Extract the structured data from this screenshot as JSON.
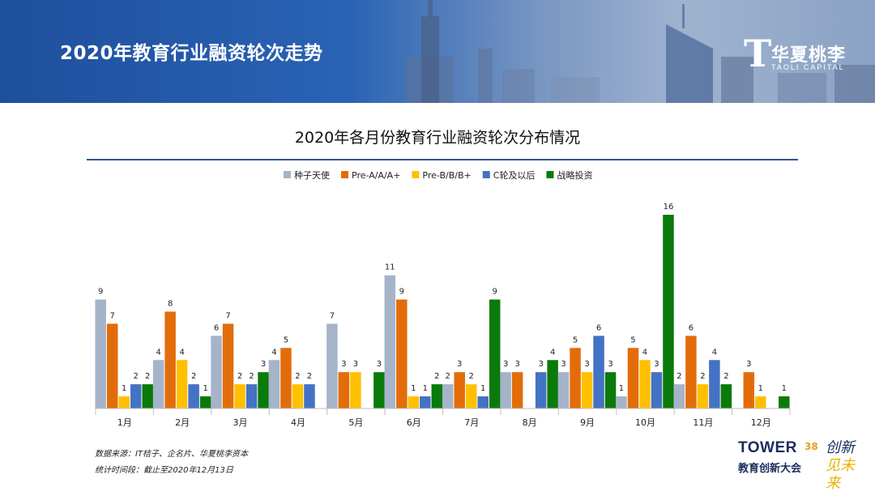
{
  "header": {
    "title": "2020年教育行业融资轮次走势"
  },
  "logo": {
    "mark": "T",
    "cn": "华夏桃李",
    "en": "TAOLI CAPITAL"
  },
  "chart_data": {
    "type": "bar",
    "title": "2020年各月份教育行业融资轮次分布情况",
    "categories": [
      "1月",
      "2月",
      "3月",
      "4月",
      "5月",
      "6月",
      "7月",
      "8月",
      "9月",
      "10月",
      "11月",
      "12月"
    ],
    "series": [
      {
        "name": "种子天使",
        "color": "#a5b4c9",
        "values": [
          9,
          4,
          6,
          4,
          7,
          11,
          2,
          3,
          3,
          1,
          2,
          null
        ]
      },
      {
        "name": "Pre-A/A/A+",
        "color": "#e36c0a",
        "values": [
          7,
          8,
          7,
          5,
          3,
          9,
          3,
          3,
          5,
          5,
          6,
          3
        ]
      },
      {
        "name": "Pre-B/B/B+",
        "color": "#ffc000",
        "values": [
          1,
          4,
          2,
          2,
          3,
          1,
          2,
          null,
          3,
          4,
          2,
          1
        ]
      },
      {
        "name": "C轮及以后",
        "color": "#4472c4",
        "values": [
          2,
          2,
          2,
          2,
          null,
          1,
          1,
          3,
          6,
          3,
          4,
          null
        ]
      },
      {
        "name": "战略投资",
        "color": "#0a7a0a",
        "values": [
          2,
          1,
          3,
          null,
          3,
          2,
          9,
          4,
          3,
          16,
          2,
          1
        ]
      }
    ],
    "ylim": [
      0,
      16
    ],
    "legend_position": "top-center",
    "xlabel": "",
    "ylabel": ""
  },
  "footer": {
    "source": "数据来源：IT桔子、企名片、华夏桃李资本",
    "period": "统计时间段：截止至2020年12月13日"
  },
  "brand": {
    "tower": "TOWER",
    "num": "38",
    "sub": "教育创新大会",
    "slogan_a": "创新",
    "slogan_b": "见未来"
  }
}
